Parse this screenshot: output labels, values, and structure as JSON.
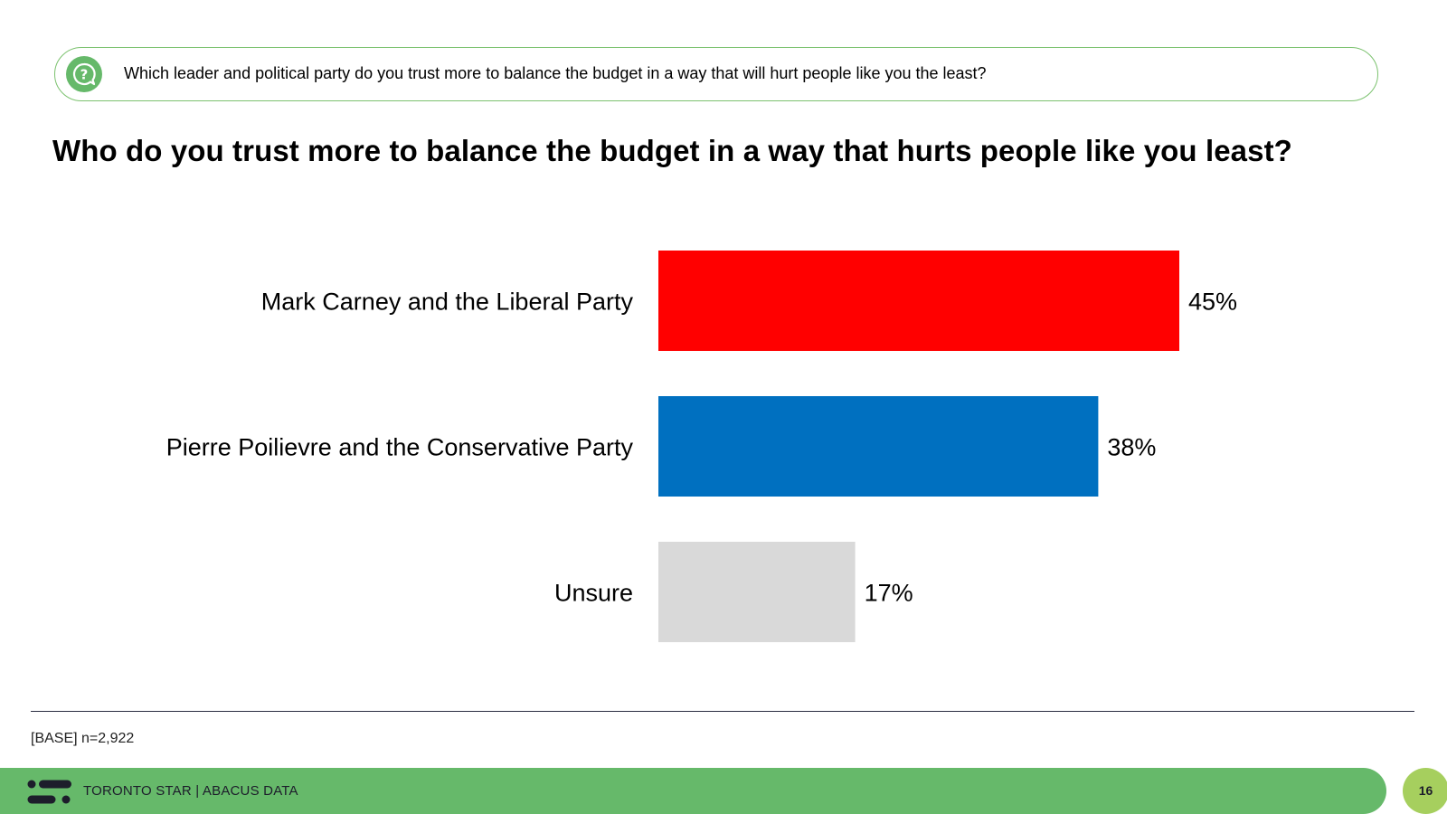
{
  "question": {
    "text": "Which leader and political party do you trust more to balance the budget in a way that will hurt people like you the least?",
    "icon": "question-bubble-icon"
  },
  "chart_data": {
    "type": "bar",
    "orientation": "horizontal",
    "title": "Who do you trust more to balance the budget in a way that hurts people like you least?",
    "categories": [
      "Mark Carney and the Liberal Party",
      "Pierre Poilievre and the Conservative Party",
      "Unsure"
    ],
    "values": [
      45,
      38,
      17
    ],
    "value_labels": [
      "45%",
      "38%",
      "17%"
    ],
    "colors": [
      "#ff0000",
      "#0070c0",
      "#d9d9d9"
    ],
    "xlim": [
      0,
      50
    ],
    "grid": false,
    "legend": "none"
  },
  "footnote": "[BASE] n=2,922",
  "footer": {
    "brand": "TORONTO STAR  |  ABACUS DATA",
    "page_number": "16"
  },
  "colors": {
    "accent_green": "#66b96a",
    "page_badge": "#a6cf5e",
    "question_border": "#7cc26f"
  }
}
